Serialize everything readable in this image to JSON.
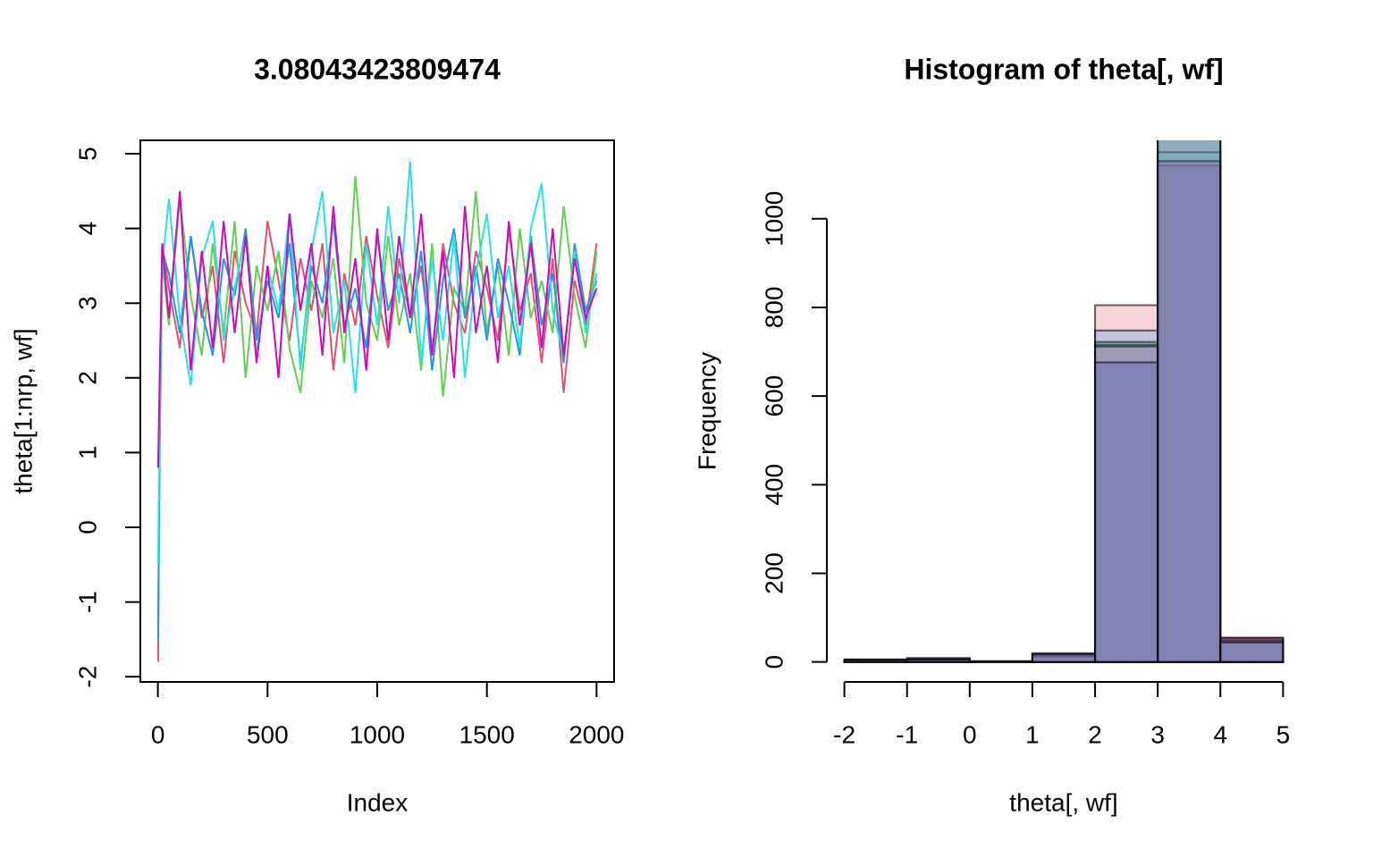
{
  "chart_data": [
    {
      "type": "line",
      "title": "3.08043423809474",
      "xlabel": "Index",
      "ylabel": "theta[1:nrp, wf]",
      "x": [
        1,
        8,
        20,
        50,
        100,
        150,
        200,
        250,
        300,
        350,
        400,
        450,
        500,
        550,
        600,
        650,
        700,
        750,
        800,
        850,
        900,
        950,
        1000,
        1050,
        1100,
        1150,
        1200,
        1250,
        1300,
        1350,
        1400,
        1450,
        1500,
        1550,
        1600,
        1650,
        1700,
        1750,
        1800,
        1850,
        1900,
        1950,
        2000
      ],
      "series": [
        {
          "color": "#DF536B",
          "values": [
            -1.8,
            1.5,
            3.8,
            3.2,
            2.4,
            3.9,
            2.8,
            3.5,
            2.2,
            3.7,
            3.0,
            2.6,
            4.1,
            3.3,
            2.5,
            3.6,
            2.9,
            3.8,
            2.1,
            3.4,
            2.7,
            3.9,
            3.1,
            2.4,
            3.6,
            2.8,
            3.5,
            2.3,
            3.8,
            3.0,
            2.6,
            3.7,
            3.2,
            2.5,
            4.0,
            2.9,
            3.4,
            2.2,
            3.6,
            1.8,
            3.3,
            2.7,
            3.8
          ]
        },
        {
          "color": "#61D04F",
          "values": [
            -1.3,
            0.9,
            3.6,
            2.7,
            4.4,
            3.1,
            2.3,
            3.8,
            2.6,
            4.1,
            2.0,
            3.5,
            2.9,
            3.7,
            2.4,
            1.8,
            3.3,
            2.8,
            3.6,
            2.2,
            4.7,
            3.0,
            2.5,
            3.9,
            2.7,
            3.4,
            2.1,
            3.8,
            1.75,
            3.2,
            2.9,
            4.5,
            2.6,
            3.5,
            2.3,
            4.0,
            2.8,
            3.3,
            2.6,
            4.3,
            3.1,
            2.4,
            3.7
          ]
        },
        {
          "color": "#2297E6",
          "values": [
            -1.5,
            1.2,
            3.7,
            3.4,
            2.6,
            3.9,
            2.9,
            2.3,
            3.6,
            3.1,
            4.0,
            2.5,
            3.3,
            2.8,
            3.8,
            2.2,
            3.5,
            3.0,
            4.1,
            2.7,
            3.2,
            2.4,
            3.9,
            2.9,
            3.4,
            2.6,
            3.7,
            2.1,
            3.3,
            4.0,
            2.8,
            3.5,
            2.5,
            3.6,
            3.0,
            2.3,
            3.9,
            2.7,
            3.4,
            2.2,
            3.8,
            2.9,
            3.3
          ]
        },
        {
          "color": "#28E2E5",
          "values": [
            -0.5,
            1.6,
            3.5,
            4.4,
            2.8,
            1.9,
            3.6,
            4.1,
            2.5,
            3.2,
            3.9,
            2.3,
            3.5,
            2.9,
            4.2,
            2.1,
            3.7,
            4.5,
            2.6,
            3.3,
            1.8,
            3.8,
            2.7,
            4.3,
            3.0,
            4.9,
            2.2,
            3.6,
            2.5,
            3.9,
            2.0,
            3.4,
            4.2,
            2.8,
            3.5,
            2.4,
            4.0,
            4.6,
            2.9,
            2.3,
            3.7,
            2.6,
            3.4
          ]
        },
        {
          "color": "#CD0BBC",
          "values": [
            0.8,
            2.0,
            3.8,
            2.8,
            4.5,
            2.1,
            3.7,
            2.4,
            4.1,
            2.6,
            3.9,
            2.2,
            3.5,
            2.0,
            4.2,
            2.9,
            3.8,
            2.3,
            4.3,
            2.6,
            3.6,
            2.1,
            4.0,
            2.5,
            3.9,
            2.8,
            4.2,
            2.3,
            3.7,
            2.0,
            4.3,
            2.6,
            3.5,
            2.2,
            4.1,
            2.7,
            3.8,
            2.4,
            4.0,
            2.3,
            3.6,
            2.8,
            3.2
          ]
        }
      ],
      "xlim": [
        -80,
        2080
      ],
      "xticks": [
        0,
        500,
        1000,
        1500,
        2000
      ],
      "ylim": [
        -2.07,
        5.18
      ],
      "yticks": [
        -2,
        -1,
        0,
        1,
        2,
        3,
        4,
        5
      ],
      "frame": true
    },
    {
      "type": "histogram",
      "title": "Histogram of theta[, wf]",
      "xlabel": "theta[, wf]",
      "ylabel": "Frequency",
      "bins": [
        -2,
        -1,
        0,
        1,
        2,
        3,
        4,
        5
      ],
      "series": [
        {
          "color": "#DF536B40",
          "values": [
            3,
            5,
            1,
            12,
            805,
            1120,
            54
          ]
        },
        {
          "color": "#2297E640",
          "values": [
            4,
            6,
            1,
            14,
            748,
            1180,
            47
          ]
        },
        {
          "color": "#28E2E540",
          "values": [
            5,
            8,
            2,
            16,
            722,
            1150,
            47
          ]
        },
        {
          "color": "#61D04F40",
          "values": [
            6,
            9,
            1,
            18,
            716,
            1200,
            50
          ]
        },
        {
          "color": "#CD0BBC40",
          "values": [
            4,
            5,
            1,
            20,
            712,
            1130,
            55
          ]
        },
        {
          "color": "#5B5BA860",
          "values": [
            5,
            6,
            1,
            18,
            676,
            1250,
            44
          ]
        }
      ],
      "xlim": [
        -2.28,
        5.28
      ],
      "xticks": [
        -2,
        -1,
        0,
        1,
        2,
        3,
        4,
        5
      ],
      "ylim": [
        -45,
        1177
      ],
      "yticks": [
        0,
        200,
        400,
        600,
        800,
        1000
      ]
    }
  ]
}
